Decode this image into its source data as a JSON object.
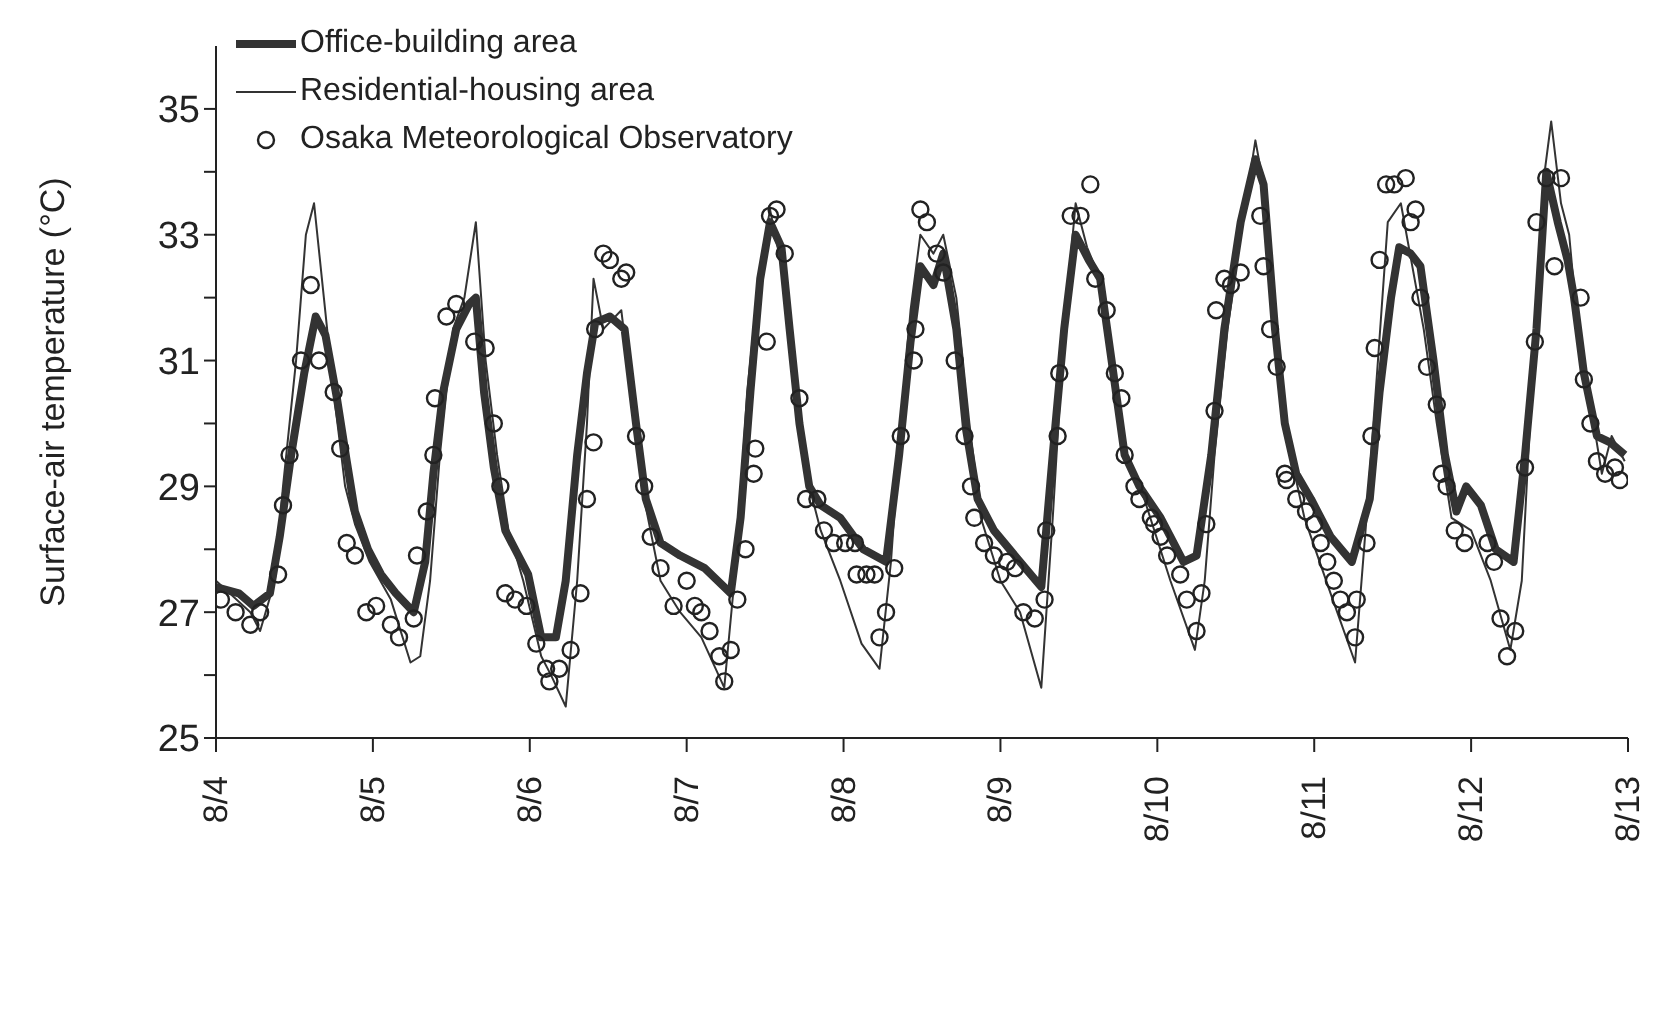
{
  "chart_data": {
    "type": "line",
    "ylabel": "Surface-air temperature (°C)",
    "xlim": [
      "--08-04",
      "--08-13"
    ],
    "ylim": [
      25,
      36
    ],
    "xticks": [
      {
        "value": "--08-04",
        "label": "8/4"
      },
      {
        "value": "--08-05",
        "label": "8/5"
      },
      {
        "value": "--08-06",
        "label": "8/6"
      },
      {
        "value": "--08-07",
        "label": "8/7"
      },
      {
        "value": "--08-08",
        "label": "8/8"
      },
      {
        "value": "--08-09",
        "label": "8/9"
      },
      {
        "value": "--08-10",
        "label": "8/10"
      },
      {
        "value": "--08-11",
        "label": "8/11"
      },
      {
        "value": "--08-12",
        "label": "8/12"
      },
      {
        "value": "--08-13",
        "label": "8/13"
      }
    ],
    "yticks": [
      25,
      {
        "value": 26,
        "label": null
      },
      27,
      {
        "value": 28,
        "label": null
      },
      29,
      {
        "value": 30,
        "label": null
      },
      31,
      {
        "value": 32,
        "label": null
      },
      33,
      {
        "value": 34,
        "label": null
      },
      35
    ],
    "legend": "top left",
    "series": [
      {
        "name": "Office-building area",
        "marker": "none",
        "color": "#333333",
        "x": [
          "--08-04T00:00",
          "--08-04T03:30",
          "--08-04T05:45",
          "--08-04T08:15",
          "--08-04T09:45",
          "--08-04T11:30",
          "--08-04T13:30",
          "--08-04T15:15",
          "--08-04T16:45",
          "--08-04T18:30",
          "--08-04T20:00",
          "--08-04T21:15",
          "--08-04T23:15",
          "--08-05T01:15",
          "--08-05T03:30",
          "--08-05T06:15",
          "--08-05T08:00",
          "--08-05T09:15",
          "--08-05T10:45",
          "--08-05T12:45",
          "--08-05T14:45",
          "--08-05T15:45",
          "--08-05T17:00",
          "--08-05T18:30",
          "--08-05T20:15",
          "--08-05T21:45",
          "--08-05T23:45",
          "--08-06T01:45",
          "--08-06T04:00",
          "--08-06T05:30",
          "--08-06T07:15",
          "--08-06T08:45",
          "--08-06T10:00",
          "--08-06T12:15",
          "--08-06T14:30",
          "--08-06T16:15",
          "--08-06T17:45",
          "--08-06T20:00",
          "--08-06T23:00",
          "--08-07T02:45",
          "--08-07T06:45",
          "--08-07T08:15",
          "--08-07T09:45",
          "--08-07T11:15",
          "--08-07T12:45",
          "--08-07T14:30",
          "--08-07T15:45",
          "--08-07T17:15",
          "--08-07T18:45",
          "--08-07T20:30",
          "--08-07T23:30",
          "--08-08T03:00",
          "--08-08T06:30",
          "--08-08T08:30",
          "--08-08T10:15",
          "--08-08T11:45",
          "--08-08T13:45",
          "--08-08T15:15",
          "--08-08T17:15",
          "--08-08T18:45",
          "--08-08T20:30",
          "--08-08T23:00",
          "--08-09T03:00",
          "--08-09T06:15",
          "--08-09T08:00",
          "--08-09T09:45",
          "--08-09T11:30",
          "--08-09T13:30",
          "--08-09T15:15",
          "--08-09T17:00",
          "--08-09T19:00",
          "--08-09T21:15",
          "--08-10T00:30",
          "--08-10T04:00",
          "--08-10T06:00",
          "--08-10T08:15",
          "--08-10T10:15",
          "--08-10T12:45",
          "--08-10T15:00",
          "--08-10T16:15",
          "--08-10T18:00",
          "--08-10T19:30",
          "--08-10T21:15",
          "--08-10T23:30",
          "--08-11T02:30",
          "--08-11T05:45",
          "--08-11T08:30",
          "--08-11T10:00",
          "--08-11T11:45",
          "--08-11T13:00",
          "--08-11T14:45",
          "--08-11T16:15",
          "--08-11T18:15",
          "--08-11T20:00",
          "--08-11T21:45",
          "--08-11T23:15",
          "--08-12T01:30",
          "--08-12T03:45",
          "--08-12T06:30",
          "--08-12T08:15",
          "--08-12T10:00",
          "--08-12T11:30",
          "--08-12T13:15",
          "--08-12T14:45",
          "--08-12T15:45",
          "--08-12T17:15",
          "--08-12T19:15",
          "--08-12T21:15",
          "--08-12T23:30"
        ],
        "values": [
          27.4,
          27.3,
          27.1,
          27.3,
          28.2,
          29.5,
          30.8,
          31.7,
          31.4,
          30.4,
          29.4,
          28.6,
          28.0,
          27.6,
          27.3,
          27.0,
          27.8,
          29.2,
          30.5,
          31.5,
          31.9,
          32.0,
          30.5,
          29.3,
          28.3,
          28.0,
          27.6,
          26.6,
          26.6,
          27.5,
          29.5,
          30.8,
          31.6,
          31.7,
          31.5,
          30.0,
          28.8,
          28.1,
          27.9,
          27.7,
          27.3,
          28.5,
          30.5,
          32.3,
          33.2,
          32.8,
          31.5,
          30.0,
          29.0,
          28.7,
          28.5,
          28.0,
          27.8,
          29.5,
          31.3,
          32.5,
          32.2,
          32.7,
          31.5,
          29.9,
          28.8,
          28.3,
          27.8,
          27.4,
          29.5,
          31.5,
          33.0,
          32.6,
          32.3,
          31.0,
          29.5,
          29.0,
          28.5,
          27.8,
          27.9,
          29.5,
          31.5,
          33.2,
          34.2,
          33.8,
          31.5,
          30.0,
          29.2,
          28.8,
          28.2,
          27.8,
          28.8,
          30.5,
          32.0,
          32.8,
          32.7,
          32.5,
          31.0,
          29.5,
          28.6,
          29.0,
          28.7,
          28.0,
          27.8,
          29.5,
          31.5,
          34.0,
          33.2,
          32.6,
          32.0,
          30.8,
          29.8,
          29.7,
          29.5
        ]
      },
      {
        "name": "Residential-housing area",
        "marker": "none",
        "color": "#333333",
        "x": [
          "--08-04T00:00",
          "--08-04T05:15",
          "--08-04T06:45",
          "--08-04T09:00",
          "--08-04T10:15",
          "--08-04T12:15",
          "--08-04T13:45",
          "--08-04T15:00",
          "--08-04T16:30",
          "--08-04T18:00",
          "--08-04T19:45",
          "--08-04T21:15",
          "--08-04T23:30",
          "--08-05T02:45",
          "--08-05T05:45",
          "--08-05T07:15",
          "--08-05T08:45",
          "--08-05T10:15",
          "--08-05T12:15",
          "--08-05T14:00",
          "--08-05T15:45",
          "--08-05T17:15",
          "--08-05T19:00",
          "--08-05T20:45",
          "--08-05T23:00",
          "--08-06T01:45",
          "--08-06T03:15",
          "--08-06T05:30",
          "--08-06T07:15",
          "--08-06T08:45",
          "--08-06T09:45",
          "--08-06T11:15",
          "--08-06T14:00",
          "--08-06T15:30",
          "--08-06T17:30",
          "--08-06T20:00",
          "--08-06T23:00",
          "--08-07T02:15",
          "--08-07T05:45",
          "--08-07T07:45",
          "--08-07T09:15",
          "--08-07T11:15",
          "--08-07T12:45",
          "--08-07T14:30",
          "--08-07T16:00",
          "--08-07T18:00",
          "--08-07T20:30",
          "--08-07T23:30",
          "--08-08T02:45",
          "--08-08T05:30",
          "--08-08T07:15",
          "--08-08T08:45",
          "--08-08T10:15",
          "--08-08T11:45",
          "--08-08T13:45",
          "--08-08T15:15",
          "--08-08T17:15",
          "--08-08T19:15",
          "--08-08T21:00",
          "--08-09T00:00",
          "--08-09T03:00",
          "--08-09T06:15",
          "--08-09T08:00",
          "--08-09T09:45",
          "--08-09T11:30",
          "--08-09T13:15",
          "--08-09T15:15",
          "--08-09T17:00",
          "--08-09T19:00",
          "--08-09T22:00",
          "--08-10T02:00",
          "--08-10T05:45",
          "--08-10T07:15",
          "--08-10T08:45",
          "--08-10T10:45",
          "--08-10T12:45",
          "--08-10T15:00",
          "--08-10T16:45",
          "--08-10T18:15",
          "--08-10T19:45",
          "--08-10T22:30",
          "--08-11T02:30",
          "--08-11T06:15",
          "--08-11T08:00",
          "--08-11T09:45",
          "--08-11T11:15",
          "--08-11T13:15",
          "--08-11T15:00",
          "--08-11T16:45",
          "--08-11T18:45",
          "--08-11T21:00",
          "--08-12T00:00",
          "--08-12T03:00",
          "--08-12T06:00",
          "--08-12T07:45",
          "--08-12T09:00",
          "--08-12T10:15",
          "--08-12T11:15",
          "--08-12T12:15",
          "--08-12T13:45",
          "--08-12T15:00",
          "--08-12T16:45",
          "--08-12T18:45",
          "--08-12T20:00",
          "--08-12T21:30",
          "--08-12T23:30"
        ],
        "values": [
          27.5,
          27.0,
          26.7,
          27.5,
          29.0,
          31.0,
          33.0,
          33.5,
          32.0,
          30.5,
          29.0,
          28.4,
          27.8,
          27.2,
          26.2,
          26.3,
          27.5,
          29.5,
          31.5,
          32.0,
          33.2,
          31.0,
          29.5,
          28.3,
          27.5,
          26.3,
          26.0,
          25.5,
          27.5,
          30.0,
          32.3,
          31.5,
          31.8,
          30.5,
          28.8,
          27.5,
          27.0,
          26.6,
          25.8,
          28.0,
          30.5,
          32.5,
          33.4,
          32.5,
          31.0,
          29.3,
          28.3,
          27.5,
          26.5,
          26.1,
          27.8,
          30.0,
          31.8,
          33.0,
          32.7,
          33.0,
          32.0,
          30.0,
          28.5,
          27.5,
          27.0,
          25.8,
          28.5,
          31.5,
          33.5,
          32.8,
          32.3,
          31.0,
          29.5,
          28.8,
          27.5,
          26.4,
          27.5,
          29.5,
          31.5,
          33.0,
          34.5,
          33.5,
          31.5,
          29.8,
          28.5,
          27.3,
          26.2,
          28.5,
          31.0,
          33.2,
          33.5,
          32.5,
          31.5,
          30.0,
          28.5,
          28.3,
          27.5,
          26.4,
          27.5,
          30.0,
          32.0,
          34.0,
          34.8,
          33.5,
          33.0,
          31.0,
          30.0,
          29.2,
          29.8,
          29.4
        ]
      },
      {
        "name": "Osaka Meteorological Observatory",
        "type": "scatter",
        "marker": "circle",
        "color": "#222222",
        "x": [
          "--08-04T00:45",
          "--08-04T03:00",
          "--08-04T05:15",
          "--08-04T06:45",
          "--08-04T09:30",
          "--08-04T10:15",
          "--08-04T11:15",
          "--08-04T13:00",
          "--08-04T14:30",
          "--08-04T15:45",
          "--08-04T18:00",
          "--08-04T19:00",
          "--08-04T20:00",
          "--08-04T21:15",
          "--08-04T23:00",
          "--08-05T00:30",
          "--08-05T02:45",
          "--08-05T04:00",
          "--08-05T06:15",
          "--08-05T06:45",
          "--08-05T08:15",
          "--08-05T09:15",
          "--08-05T09:30",
          "--08-05T11:15",
          "--08-05T12:45",
          "--08-05T15:30",
          "--08-05T17:15",
          "--08-05T18:30",
          "--08-05T19:30",
          "--08-05T20:15",
          "--08-05T21:45",
          "--08-05T23:30",
          "--08-06T01:00",
          "--08-06T02:30",
          "--08-06T03:00",
          "--08-06T04:30",
          "--08-06T06:15",
          "--08-06T07:45",
          "--08-06T08:45",
          "--08-06T09:45",
          "--08-06T10:00",
          "--08-06T11:15",
          "--08-06T12:15",
          "--08-06T14:00",
          "--08-06T14:45",
          "--08-06T16:15",
          "--08-06T17:30",
          "--08-06T18:30",
          "--08-06T20:00",
          "--08-06T22:00",
          "--08-07T00:00",
          "--08-07T01:15",
          "--08-07T02:15",
          "--08-07T03:30",
          "--08-07T05:00",
          "--08-07T05:45",
          "--08-07T06:45",
          "--08-07T07:45",
          "--08-07T09:00",
          "--08-07T10:15",
          "--08-07T10:30",
          "--08-07T12:15",
          "--08-07T12:45",
          "--08-07T13:45",
          "--08-07T15:00",
          "--08-07T17:15",
          "--08-07T18:15",
          "--08-07T20:00",
          "--08-07T21:00",
          "--08-07T22:30",
          "--08-08T00:15",
          "--08-08T01:45",
          "--08-08T02:00",
          "--08-08T03:30",
          "--08-08T04:45",
          "--08-08T05:30",
          "--08-08T06:30",
          "--08-08T07:45",
          "--08-08T08:45",
          "--08-08T10:45",
          "--08-08T11:00",
          "--08-08T11:45",
          "--08-08T12:45",
          "--08-08T14:15",
          "--08-08T15:15",
          "--08-08T17:00",
          "--08-08T18:30",
          "--08-08T19:30",
          "--08-08T20:00",
          "--08-08T21:30",
          "--08-08T23:00",
          "--08-09T00:00",
          "--08-09T01:00",
          "--08-09T02:15",
          "--08-09T03:30",
          "--08-09T05:15",
          "--08-09T06:45",
          "--08-09T07:00",
          "--08-09T08:45",
          "--08-09T09:00",
          "--08-09T10:45",
          "--08-09T12:15",
          "--08-09T13:45",
          "--08-09T14:30",
          "--08-09T16:15",
          "--08-09T17:30",
          "--08-09T18:30",
          "--08-09T19:00",
          "--08-09T20:30",
          "--08-09T21:15",
          "--08-09T23:00",
          "--08-09T23:30",
          "--08-10T00:30",
          "--08-10T01:30",
          "--08-10T03:30",
          "--08-10T04:30",
          "--08-10T06:00",
          "--08-10T06:45",
          "--08-10T07:30",
          "--08-10T08:45",
          "--08-10T09:00",
          "--08-10T10:15",
          "--08-10T11:15",
          "--08-10T12:45",
          "--08-10T15:45",
          "--08-10T16:15",
          "--08-10T17:15",
          "--08-10T18:15",
          "--08-10T19:30",
          "--08-10T19:45",
          "--08-10T21:15",
          "--08-10T22:45",
          "--08-11T00:00",
          "--08-11T01:00",
          "--08-11T02:00",
          "--08-11T03:00",
          "--08-11T04:00",
          "--08-11T05:00",
          "--08-11T06:15",
          "--08-11T06:30",
          "--08-11T08:00",
          "--08-11T08:45",
          "--08-11T09:15",
          "--08-11T10:00",
          "--08-11T11:00",
          "--08-11T12:15",
          "--08-11T14:00",
          "--08-11T14:45",
          "--08-11T15:30",
          "--08-11T16:15",
          "--08-11T17:15",
          "--08-11T18:45",
          "--08-11T19:30",
          "--08-11T20:15",
          "--08-11T21:30",
          "--08-11T23:00",
          "--08-12T02:30",
          "--08-12T03:30",
          "--08-12T04:30",
          "--08-12T05:30",
          "--08-12T06:45",
          "--08-12T08:15",
          "--08-12T09:45",
          "--08-12T10:00",
          "--08-12T11:30",
          "--08-12T12:45",
          "--08-12T13:45",
          "--08-12T16:45",
          "--08-12T17:15",
          "--08-12T18:15",
          "--08-12T19:15",
          "--08-12T20:30",
          "--08-12T22:00",
          "--08-12T22:45"
        ],
        "values": [
          27.2,
          27.0,
          26.8,
          27.0,
          27.6,
          28.7,
          29.5,
          31.0,
          32.2,
          31.0,
          30.5,
          29.6,
          28.1,
          27.9,
          27.0,
          27.1,
          26.8,
          26.6,
          26.9,
          27.9,
          28.6,
          29.5,
          30.4,
          31.7,
          31.9,
          31.3,
          31.2,
          30.0,
          29.0,
          27.3,
          27.2,
          27.1,
          26.5,
          26.1,
          25.9,
          26.1,
          26.4,
          27.3,
          28.8,
          29.7,
          31.5,
          32.7,
          32.6,
          32.3,
          32.4,
          29.8,
          29.0,
          28.2,
          27.7,
          27.1,
          27.5,
          27.1,
          27.0,
          26.7,
          26.3,
          25.9,
          26.4,
          27.2,
          28.0,
          29.2,
          29.6,
          31.3,
          33.3,
          33.4,
          32.7,
          30.4,
          28.8,
          28.8,
          28.3,
          28.1,
          28.1,
          28.1,
          27.6,
          27.6,
          27.6,
          26.6,
          27.0,
          27.7,
          29.8,
          31.0,
          31.5,
          33.4,
          33.2,
          32.7,
          32.4,
          31.0,
          29.8,
          29.0,
          28.5,
          28.1,
          27.9,
          27.6,
          27.8,
          27.7,
          27.0,
          26.9,
          27.2,
          28.3,
          29.8,
          30.8,
          33.3,
          33.3,
          33.8,
          32.3,
          31.8,
          30.8,
          30.4,
          29.5,
          29.0,
          28.8,
          28.5,
          28.4,
          28.2,
          27.9,
          27.6,
          27.2,
          26.7,
          27.3,
          28.4,
          30.2,
          31.8,
          32.3,
          32.2,
          32.4,
          33.3,
          32.5,
          31.5,
          30.9,
          29.2,
          29.1,
          28.8,
          28.6,
          28.4,
          28.1,
          27.8,
          27.5,
          27.2,
          27.0,
          26.6,
          27.2,
          28.1,
          29.8,
          31.2,
          32.6,
          33.8,
          33.8,
          33.9,
          33.2,
          33.4,
          32.0,
          30.9,
          30.3,
          29.2,
          29.0,
          28.3,
          28.1,
          28.1,
          27.8,
          26.9,
          26.3,
          26.7,
          29.3,
          31.3,
          33.2,
          33.9,
          32.5,
          33.9,
          32.0,
          30.7,
          30.0,
          29.4,
          29.2,
          29.3,
          29.1
        ]
      }
    ]
  }
}
